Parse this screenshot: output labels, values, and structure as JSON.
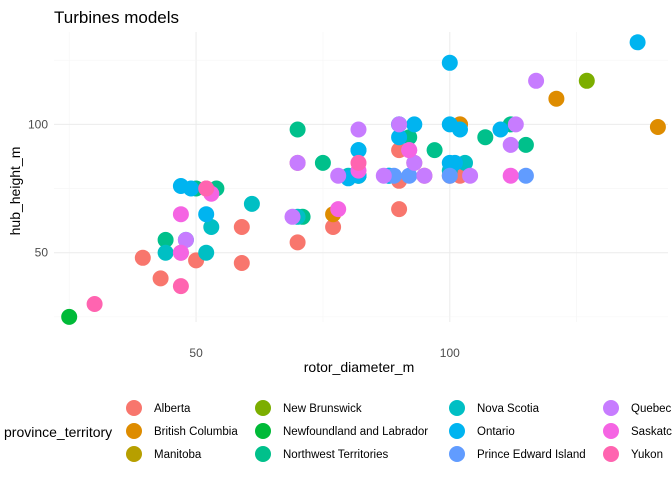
{
  "chart_data": {
    "type": "scatter",
    "title": "Turbines models",
    "xlabel": "rotor_diameter_m",
    "ylabel": "hub_height_m",
    "xlim": [
      22,
      143
    ],
    "ylim": [
      23,
      136
    ],
    "x_ticks": [
      50,
      100
    ],
    "y_ticks": [
      50,
      100
    ],
    "grid": true,
    "legend": {
      "title": "province_territory",
      "placement": "bottom",
      "entries": [
        "Alberta",
        "British Columbia",
        "Manitoba",
        "New Brunswick",
        "Newfoundland and Labrador",
        "Northwest Territories",
        "Nova Scotia",
        "Ontario",
        "Prince Edward Island",
        "Quebec",
        "Saskatchewan",
        "Yukon"
      ]
    },
    "series": [
      {
        "name": "Alberta",
        "color": "#F8766D",
        "points": [
          [
            39.5,
            48
          ],
          [
            43,
            40
          ],
          [
            47,
            50
          ],
          [
            50,
            47
          ],
          [
            52,
            75
          ],
          [
            59,
            60
          ],
          [
            59,
            46
          ],
          [
            70,
            54
          ],
          [
            70,
            85
          ],
          [
            77,
            60
          ],
          [
            90,
            67
          ],
          [
            90,
            78
          ],
          [
            90,
            90
          ],
          [
            93,
            85
          ],
          [
            95,
            80
          ],
          [
            100,
            80
          ],
          [
            102,
            80
          ],
          [
            102,
            100
          ]
        ]
      },
      {
        "name": "British Columbia",
        "color": "#DE8C00",
        "points": [
          [
            77,
            65
          ],
          [
            102,
            100
          ],
          [
            121,
            110
          ],
          [
            141,
            99
          ]
        ]
      },
      {
        "name": "Manitoba",
        "color": "#B79F00",
        "points": [
          [
            82,
            80
          ]
        ]
      },
      {
        "name": "New Brunswick",
        "color": "#7CAE00",
        "points": [
          [
            127,
            117
          ]
        ]
      },
      {
        "name": "Newfoundland and Labrador",
        "color": "#00BA38",
        "points": [
          [
            25,
            25
          ]
        ]
      },
      {
        "name": "Northwest Territories",
        "color": "#00C08B",
        "points": [
          [
            44,
            55
          ],
          [
            50,
            75
          ],
          [
            54,
            75
          ],
          [
            70,
            98
          ],
          [
            71,
            64
          ],
          [
            75,
            85
          ],
          [
            82,
            80
          ],
          [
            88,
            80
          ],
          [
            92,
            95
          ],
          [
            97,
            90
          ],
          [
            107,
            95
          ],
          [
            112,
            100
          ],
          [
            115,
            92
          ]
        ]
      },
      {
        "name": "Nova Scotia",
        "color": "#00BFC4",
        "points": [
          [
            44,
            50
          ],
          [
            48,
            55
          ],
          [
            52,
            50
          ],
          [
            53,
            60
          ],
          [
            61,
            69
          ],
          [
            70,
            64
          ],
          [
            80,
            80
          ],
          [
            82,
            90
          ],
          [
            90,
            100
          ],
          [
            100,
            82
          ],
          [
            103,
            85
          ]
        ]
      },
      {
        "name": "Ontario",
        "color": "#00B4F0",
        "points": [
          [
            47,
            76
          ],
          [
            49,
            75
          ],
          [
            52,
            65
          ],
          [
            80,
            79
          ],
          [
            82,
            80
          ],
          [
            82,
            90
          ],
          [
            88,
            80
          ],
          [
            90,
            95
          ],
          [
            90,
            100
          ],
          [
            93,
            100
          ],
          [
            100,
            124
          ],
          [
            100,
            100
          ],
          [
            100,
            85
          ],
          [
            101,
            85
          ],
          [
            102,
            98
          ],
          [
            110,
            98
          ],
          [
            137,
            132
          ]
        ]
      },
      {
        "name": "Prince Edward Island",
        "color": "#619CFF",
        "points": [
          [
            89,
            80
          ],
          [
            92,
            80
          ],
          [
            100,
            80
          ],
          [
            115,
            80
          ]
        ]
      },
      {
        "name": "Quebec",
        "color": "#C77CFF",
        "points": [
          [
            48,
            55
          ],
          [
            69,
            64
          ],
          [
            70,
            85
          ],
          [
            78,
            80
          ],
          [
            82,
            98
          ],
          [
            87,
            80
          ],
          [
            90,
            100
          ],
          [
            92,
            90
          ],
          [
            93,
            85
          ],
          [
            95,
            80
          ],
          [
            104,
            80
          ],
          [
            113,
            100
          ],
          [
            112,
            92
          ],
          [
            117,
            117
          ]
        ]
      },
      {
        "name": "Saskatchewan",
        "color": "#F564E3",
        "points": [
          [
            47,
            65
          ],
          [
            47,
            50
          ],
          [
            53,
            73
          ],
          [
            78,
            67
          ],
          [
            82,
            82
          ],
          [
            92,
            90
          ],
          [
            112,
            80
          ]
        ]
      },
      {
        "name": "Yukon",
        "color": "#FF64B0",
        "points": [
          [
            30,
            30
          ],
          [
            47,
            37
          ],
          [
            52,
            75
          ],
          [
            82,
            85
          ]
        ]
      }
    ]
  }
}
